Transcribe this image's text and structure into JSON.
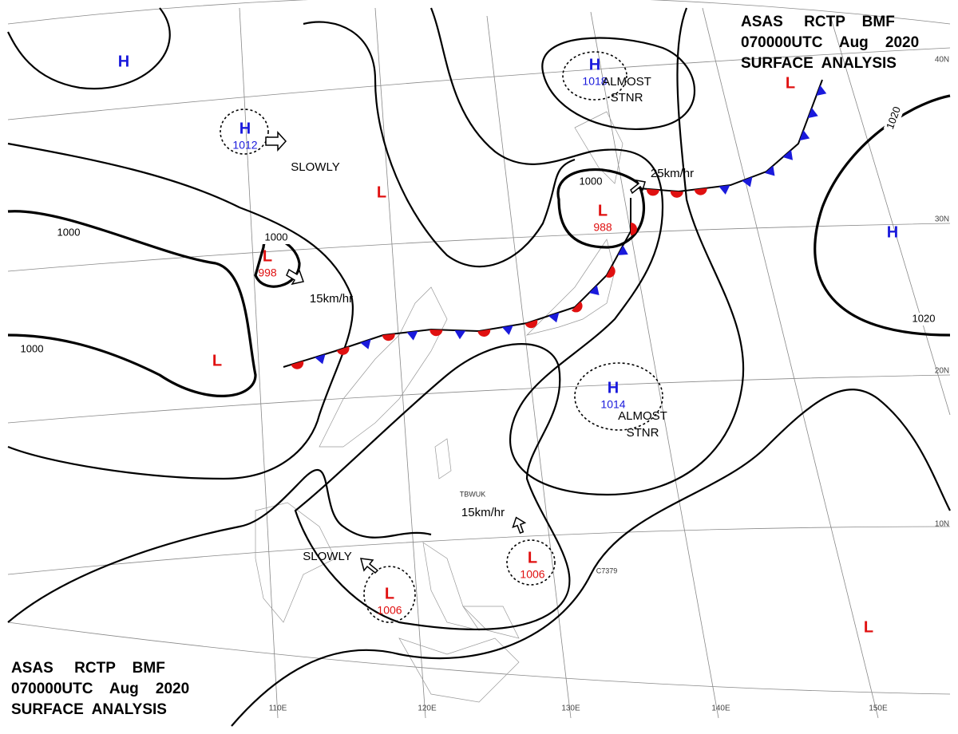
{
  "header": {
    "line1": "ASAS     RCTP    BMF",
    "line2": "070000UTC    Aug    2020",
    "line3": "SURFACE  ANALYSIS"
  },
  "centers": [
    {
      "type": "H",
      "color": "#1a1adc"
    },
    {
      "type": "H",
      "value": 1012,
      "color": "#1a1adc"
    },
    {
      "type": "L",
      "color": "#e01010"
    },
    {
      "type": "L",
      "value": 998,
      "color": "#e01010"
    },
    {
      "type": "L",
      "color": "#e01010"
    },
    {
      "type": "H",
      "value": 1018,
      "color": "#1a1adc"
    },
    {
      "type": "L",
      "value": 988,
      "color": "#e01010"
    },
    {
      "type": "L",
      "color": "#e01010"
    },
    {
      "type": "H",
      "color": "#1a1adc"
    },
    {
      "type": "H",
      "value": 1014,
      "color": "#1a1adc"
    },
    {
      "type": "L",
      "value": 1006,
      "color": "#e01010"
    },
    {
      "type": "L",
      "value": 1006,
      "color": "#e01010"
    },
    {
      "type": "L",
      "color": "#e01010"
    }
  ],
  "isobar_labels": [
    1000,
    1000,
    1000,
    1000,
    1020,
    1020
  ],
  "movements": [
    "SLOWLY",
    "15km/hr",
    "25km/hr",
    "ALMOST",
    "STNR",
    "ALMOST",
    "STNR",
    "15km/hr",
    "SLOWLY"
  ],
  "latitudes": [
    "40N",
    "30N",
    "20N",
    "10N"
  ],
  "longitudes": [
    "110E",
    "120E",
    "130E",
    "140E",
    "150E"
  ],
  "stations": [
    "TBWUK",
    "C7379"
  ]
}
